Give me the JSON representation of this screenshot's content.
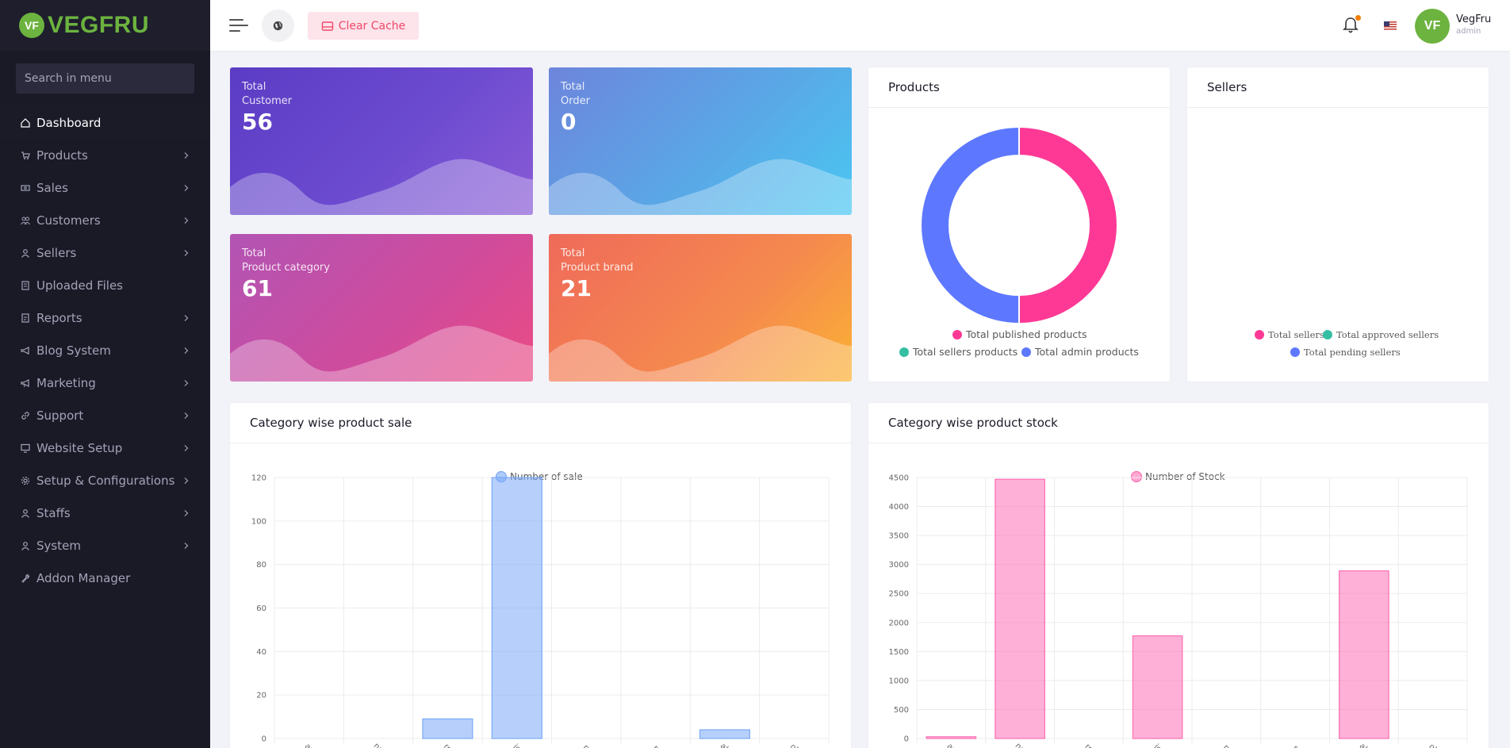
{
  "brand": {
    "logo_mark": "VF",
    "name": "VEGFRU"
  },
  "sidebar": {
    "search_placeholder": "Search in menu",
    "items": [
      {
        "label": "Dashboard",
        "icon": "home-icon",
        "active": true,
        "has_children": false
      },
      {
        "label": "Products",
        "icon": "cart-icon",
        "has_children": true
      },
      {
        "label": "Sales",
        "icon": "money-icon",
        "has_children": true
      },
      {
        "label": "Customers",
        "icon": "users-icon",
        "has_children": true
      },
      {
        "label": "Sellers",
        "icon": "user-icon",
        "has_children": true
      },
      {
        "label": "Uploaded Files",
        "icon": "file-icon",
        "has_children": false
      },
      {
        "label": "Reports",
        "icon": "report-icon",
        "has_children": true
      },
      {
        "label": "Blog System",
        "icon": "bullhorn-icon",
        "has_children": true
      },
      {
        "label": "Marketing",
        "icon": "megaphone-icon",
        "has_children": true
      },
      {
        "label": "Support",
        "icon": "link-icon",
        "has_children": true
      },
      {
        "label": "Website Setup",
        "icon": "desktop-icon",
        "has_children": true
      },
      {
        "label": "Setup & Configurations",
        "icon": "gear-icon",
        "has_children": true
      },
      {
        "label": "Staffs",
        "icon": "user-icon",
        "has_children": true
      },
      {
        "label": "System",
        "icon": "user-icon",
        "has_children": true
      },
      {
        "label": "Addon Manager",
        "icon": "wrench-icon",
        "has_children": false
      }
    ]
  },
  "topbar": {
    "clear_cache_label": "Clear Cache",
    "notification_dot_color": "#f57c00",
    "user": {
      "avatar_text": "VF",
      "name": "VegFru",
      "role": "admin"
    }
  },
  "stats": [
    {
      "line1": "Total",
      "line2": "Customer",
      "value": "56"
    },
    {
      "line1": "Total",
      "line2": "Order",
      "value": "0"
    },
    {
      "line1": "Total",
      "line2": "Product category",
      "value": "61"
    },
    {
      "line1": "Total",
      "line2": "Product brand",
      "value": "21"
    }
  ],
  "products_panel": {
    "title": "Products",
    "legend": [
      {
        "label": "Total published products",
        "color": "#fd3995"
      },
      {
        "label": "Total sellers products",
        "color": "#34bfa3"
      },
      {
        "label": "Total admin products",
        "color": "#5d78ff"
      }
    ]
  },
  "sellers_panel": {
    "title": "Sellers",
    "legend": [
      {
        "label": "Total sellers",
        "color": "#fd3995"
      },
      {
        "label": "Total approved sellers",
        "color": "#34bfa3"
      },
      {
        "label": "Total pending sellers",
        "color": "#5d78ff"
      }
    ]
  },
  "sale_panel": {
    "title": "Category wise product sale"
  },
  "stock_panel": {
    "title": "Category wise product stock"
  },
  "chart_data": [
    {
      "type": "pie",
      "title": "Products",
      "categories": [
        "Total published products",
        "Total sellers products",
        "Total admin products"
      ],
      "values": [
        50,
        0,
        50
      ],
      "colors": [
        "#fd3995",
        "#34bfa3",
        "#5d78ff"
      ]
    },
    {
      "type": "bar",
      "title": "Category wise product sale",
      "categories": [
        "ary",
        "nds",
        "res",
        "ies",
        "ne",
        "re",
        "aks",
        "old"
      ],
      "series": [
        {
          "name": "Number of sale",
          "values": [
            0,
            0,
            9,
            120,
            0,
            0,
            4,
            0
          ]
        }
      ],
      "ylim": [
        0,
        120
      ],
      "yticks": [
        0,
        20,
        40,
        60,
        80,
        100,
        120
      ],
      "color": "#7aa9f7"
    },
    {
      "type": "bar",
      "title": "Category wise product stock",
      "categories": [
        "ary",
        "nds",
        "res",
        "ies",
        "ne",
        "re",
        "aks",
        "old"
      ],
      "series": [
        {
          "name": "Number of Stock",
          "values": [
            30,
            4470,
            0,
            1770,
            0,
            0,
            2890,
            0
          ]
        }
      ],
      "ylim": [
        0,
        4500
      ],
      "yticks": [
        0,
        500,
        1000,
        1500,
        2000,
        2500,
        3000,
        3500,
        4000,
        4500
      ],
      "color": "#fd6fb4"
    }
  ]
}
